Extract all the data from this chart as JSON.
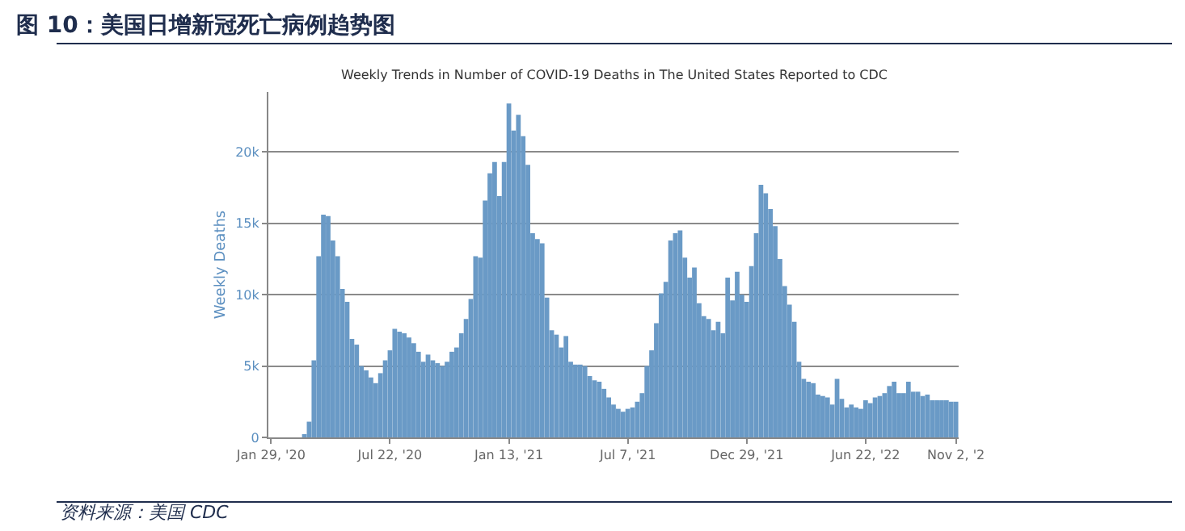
{
  "chart_data": {
    "type": "bar",
    "title": "图 10：美国日增新冠死亡病例趋势图",
    "subtitle": "Weekly Trends in Number of COVID-19 Deaths in The United States Reported to CDC",
    "ylabel": "Weekly Deaths",
    "annotations": [
      "资料来源：美国 CDC"
    ],
    "x": [
      "2020-01-29",
      "2020-02-05",
      "2020-02-12",
      "2020-02-19",
      "2020-02-26",
      "2020-03-04",
      "2020-03-11",
      "2020-03-18",
      "2020-03-25",
      "2020-04-01",
      "2020-04-08",
      "2020-04-15",
      "2020-04-22",
      "2020-04-29",
      "2020-05-06",
      "2020-05-13",
      "2020-05-20",
      "2020-05-27",
      "2020-06-03",
      "2020-06-10",
      "2020-06-17",
      "2020-06-24",
      "2020-07-01",
      "2020-07-08",
      "2020-07-15",
      "2020-07-22",
      "2020-07-29",
      "2020-08-05",
      "2020-08-12",
      "2020-08-19",
      "2020-08-26",
      "2020-09-02",
      "2020-09-09",
      "2020-09-16",
      "2020-09-23",
      "2020-09-30",
      "2020-10-07",
      "2020-10-14",
      "2020-10-21",
      "2020-10-28",
      "2020-11-04",
      "2020-11-11",
      "2020-11-18",
      "2020-11-25",
      "2020-12-02",
      "2020-12-09",
      "2020-12-16",
      "2020-12-23",
      "2020-12-30",
      "2021-01-06",
      "2021-01-13",
      "2021-01-20",
      "2021-01-27",
      "2021-02-03",
      "2021-02-10",
      "2021-02-17",
      "2021-02-24",
      "2021-03-03",
      "2021-03-10",
      "2021-03-17",
      "2021-03-24",
      "2021-03-31",
      "2021-04-07",
      "2021-04-14",
      "2021-04-21",
      "2021-04-28",
      "2021-05-05",
      "2021-05-12",
      "2021-05-19",
      "2021-05-26",
      "2021-06-02",
      "2021-06-09",
      "2021-06-16",
      "2021-06-23",
      "2021-06-30",
      "2021-07-07",
      "2021-07-14",
      "2021-07-21",
      "2021-07-28",
      "2021-08-04",
      "2021-08-11",
      "2021-08-18",
      "2021-08-25",
      "2021-09-01",
      "2021-09-08",
      "2021-09-15",
      "2021-09-22",
      "2021-09-29",
      "2021-10-06",
      "2021-10-13",
      "2021-10-20",
      "2021-10-27",
      "2021-11-03",
      "2021-11-10",
      "2021-11-17",
      "2021-11-24",
      "2021-12-01",
      "2021-12-08",
      "2021-12-15",
      "2021-12-22",
      "2021-12-29",
      "2022-01-05",
      "2022-01-12",
      "2022-01-19",
      "2022-01-26",
      "2022-02-02",
      "2022-02-09",
      "2022-02-16",
      "2022-02-23",
      "2022-03-02",
      "2022-03-09",
      "2022-03-16",
      "2022-03-23",
      "2022-03-30",
      "2022-04-06",
      "2022-04-13",
      "2022-04-20",
      "2022-04-27",
      "2022-05-04",
      "2022-05-11",
      "2022-05-18",
      "2022-05-25",
      "2022-06-01",
      "2022-06-08",
      "2022-06-15",
      "2022-06-22",
      "2022-06-29",
      "2022-07-06",
      "2022-07-13",
      "2022-07-20",
      "2022-07-27",
      "2022-08-03",
      "2022-08-10",
      "2022-08-17",
      "2022-08-24",
      "2022-08-31",
      "2022-09-07",
      "2022-09-14",
      "2022-09-21",
      "2022-09-28",
      "2022-10-05",
      "2022-10-12",
      "2022-10-19",
      "2022-10-26",
      "2022-11-02"
    ],
    "series": [
      {
        "color": "#6a9ac6",
        "values": [
          0,
          0,
          0,
          0,
          0,
          0,
          0,
          200,
          1100,
          5400,
          12700,
          15600,
          15500,
          13800,
          12700,
          10400,
          9500,
          6900,
          6500,
          5000,
          4700,
          4200,
          3800,
          4500,
          5400,
          6100,
          7600,
          7400,
          7300,
          7000,
          6600,
          6000,
          5300,
          5800,
          5400,
          5200,
          5000,
          5300,
          6000,
          6300,
          7300,
          8300,
          9700,
          12700,
          12600,
          16600,
          18500,
          19300,
          16900,
          19300,
          23400,
          21500,
          22600,
          21100,
          19100,
          14300,
          13900,
          13600,
          9800,
          7500,
          7200,
          6300,
          7100,
          5300,
          5100,
          5100,
          5000,
          4300,
          4000,
          3900,
          3400,
          2800,
          2300,
          2000,
          1800,
          2000,
          2100,
          2500,
          3100,
          5000,
          6100,
          8000,
          10100,
          10900,
          13800,
          14300,
          14500,
          12600,
          11200,
          11900,
          9400,
          8500,
          8300,
          7500,
          8100,
          7300,
          11200,
          9600,
          11600,
          10000,
          9500,
          12000,
          14300,
          17700,
          17100,
          16000,
          14800,
          12500,
          10600,
          9300,
          8100,
          5300,
          4100,
          3900,
          3800,
          3000,
          2900,
          2800,
          2300,
          4100,
          2700,
          2100,
          2300,
          2100,
          2000,
          2600,
          2400,
          2800,
          2900,
          3100,
          3600,
          3900,
          3100,
          3100,
          3900,
          3200,
          3200,
          2900,
          3000,
          2600,
          2600,
          2600,
          2600,
          2500,
          2500
        ]
      }
    ],
    "xlim": [
      "2020-01-25",
      "2022-11-06"
    ],
    "xticks": [
      {
        "value": "2020-01-29",
        "label": "Jan 29, '20"
      },
      {
        "value": "2020-07-22",
        "label": "Jul 22, '20"
      },
      {
        "value": "2021-01-13",
        "label": "Jan 13, '21"
      },
      {
        "value": "2021-07-07",
        "label": "Jul 7, '21"
      },
      {
        "value": "2021-12-29",
        "label": "Dec 29, '21"
      },
      {
        "value": "2022-06-22",
        "label": "Jun 22, '22"
      },
      {
        "value": "2022-11-02",
        "label": "Nov 2, '2"
      }
    ],
    "ylim": [
      0,
      24200
    ],
    "yticks": [
      0,
      {
        "value": 5000,
        "label": "5k"
      },
      {
        "value": 10000,
        "label": "10k"
      },
      {
        "value": 15000,
        "label": "15k"
      },
      {
        "value": 20000,
        "label": "20k"
      }
    ],
    "grid": "y"
  }
}
